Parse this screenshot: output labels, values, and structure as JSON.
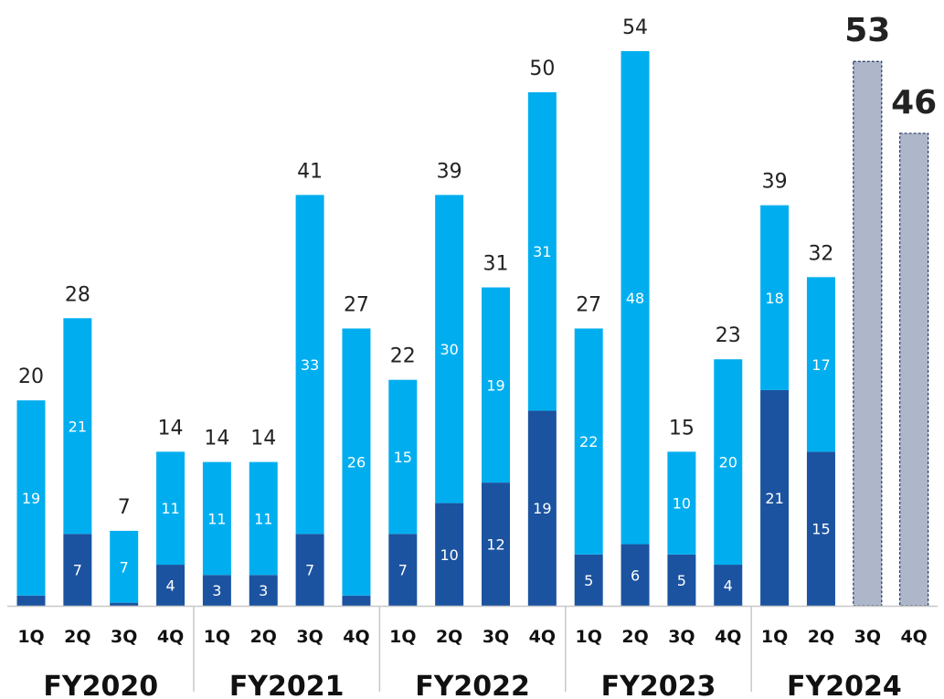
{
  "chart_data": {
    "type": "bar",
    "stacked": true,
    "groups": [
      "FY2020",
      "FY2021",
      "FY2022",
      "FY2023",
      "FY2024"
    ],
    "quarters": [
      "1Q",
      "2Q",
      "3Q",
      "4Q"
    ],
    "categories": [
      "FY2020 1Q",
      "FY2020 2Q",
      "FY2020 3Q",
      "FY2020 4Q",
      "FY2021 1Q",
      "FY2021 2Q",
      "FY2021 3Q",
      "FY2021 4Q",
      "FY2022 1Q",
      "FY2022 2Q",
      "FY2022 3Q",
      "FY2022 4Q",
      "FY2023 1Q",
      "FY2023 2Q",
      "FY2023 3Q",
      "FY2023 4Q",
      "FY2024 1Q",
      "FY2024 2Q",
      "FY2024 3Q",
      "FY2024 4Q"
    ],
    "series": [
      {
        "values": [
          1,
          7,
          0.3,
          4,
          3,
          3,
          7,
          1,
          7,
          10,
          12,
          19,
          5,
          6,
          5,
          4,
          21,
          15,
          null,
          null
        ],
        "labels": [
          "",
          "7",
          "",
          "4",
          "3",
          "3",
          "7",
          "",
          "7",
          "10",
          "12",
          "19",
          "5",
          "6",
          "5",
          "4",
          "21",
          "15",
          "",
          ""
        ]
      },
      {
        "values": [
          19,
          21,
          7,
          11,
          11,
          11,
          33,
          26,
          15,
          30,
          19,
          31,
          22,
          48,
          10,
          20,
          18,
          17,
          null,
          null
        ],
        "labels": [
          "19",
          "21",
          "7",
          "11",
          "11",
          "11",
          "33",
          "26",
          "15",
          "30",
          "19",
          "31",
          "22",
          "48",
          "10",
          "20",
          "18",
          "17",
          "",
          ""
        ]
      },
      {
        "values": [
          null,
          null,
          null,
          null,
          null,
          null,
          null,
          null,
          null,
          null,
          null,
          null,
          null,
          null,
          null,
          null,
          null,
          null,
          53,
          46
        ],
        "labels": [
          "",
          "",
          "",
          "",
          "",
          "",
          "",
          "",
          "",
          "",
          "",
          "",
          "",
          "",
          "",
          "",
          "",
          "",
          "",
          ""
        ]
      }
    ],
    "totals": [
      "20",
      "28",
      "7",
      "14",
      "14",
      "14",
      "41",
      "27",
      "22",
      "39",
      "31",
      "50",
      "27",
      "54",
      "15",
      "23",
      "39",
      "32",
      "53",
      "46"
    ],
    "colors": {
      "dark": "#1b53a0",
      "light": "#00aeef",
      "forecast": "#aeb7ca",
      "forecast_border": "#1f3864",
      "total_text": "#222222",
      "inner_text": "#ffffff",
      "axis_text": "#111111",
      "axis_line": "#c8c8c8"
    },
    "ylim": [
      0,
      56
    ],
    "grid": false,
    "legend": "none",
    "xlabel": "",
    "ylabel": "",
    "title": ""
  }
}
